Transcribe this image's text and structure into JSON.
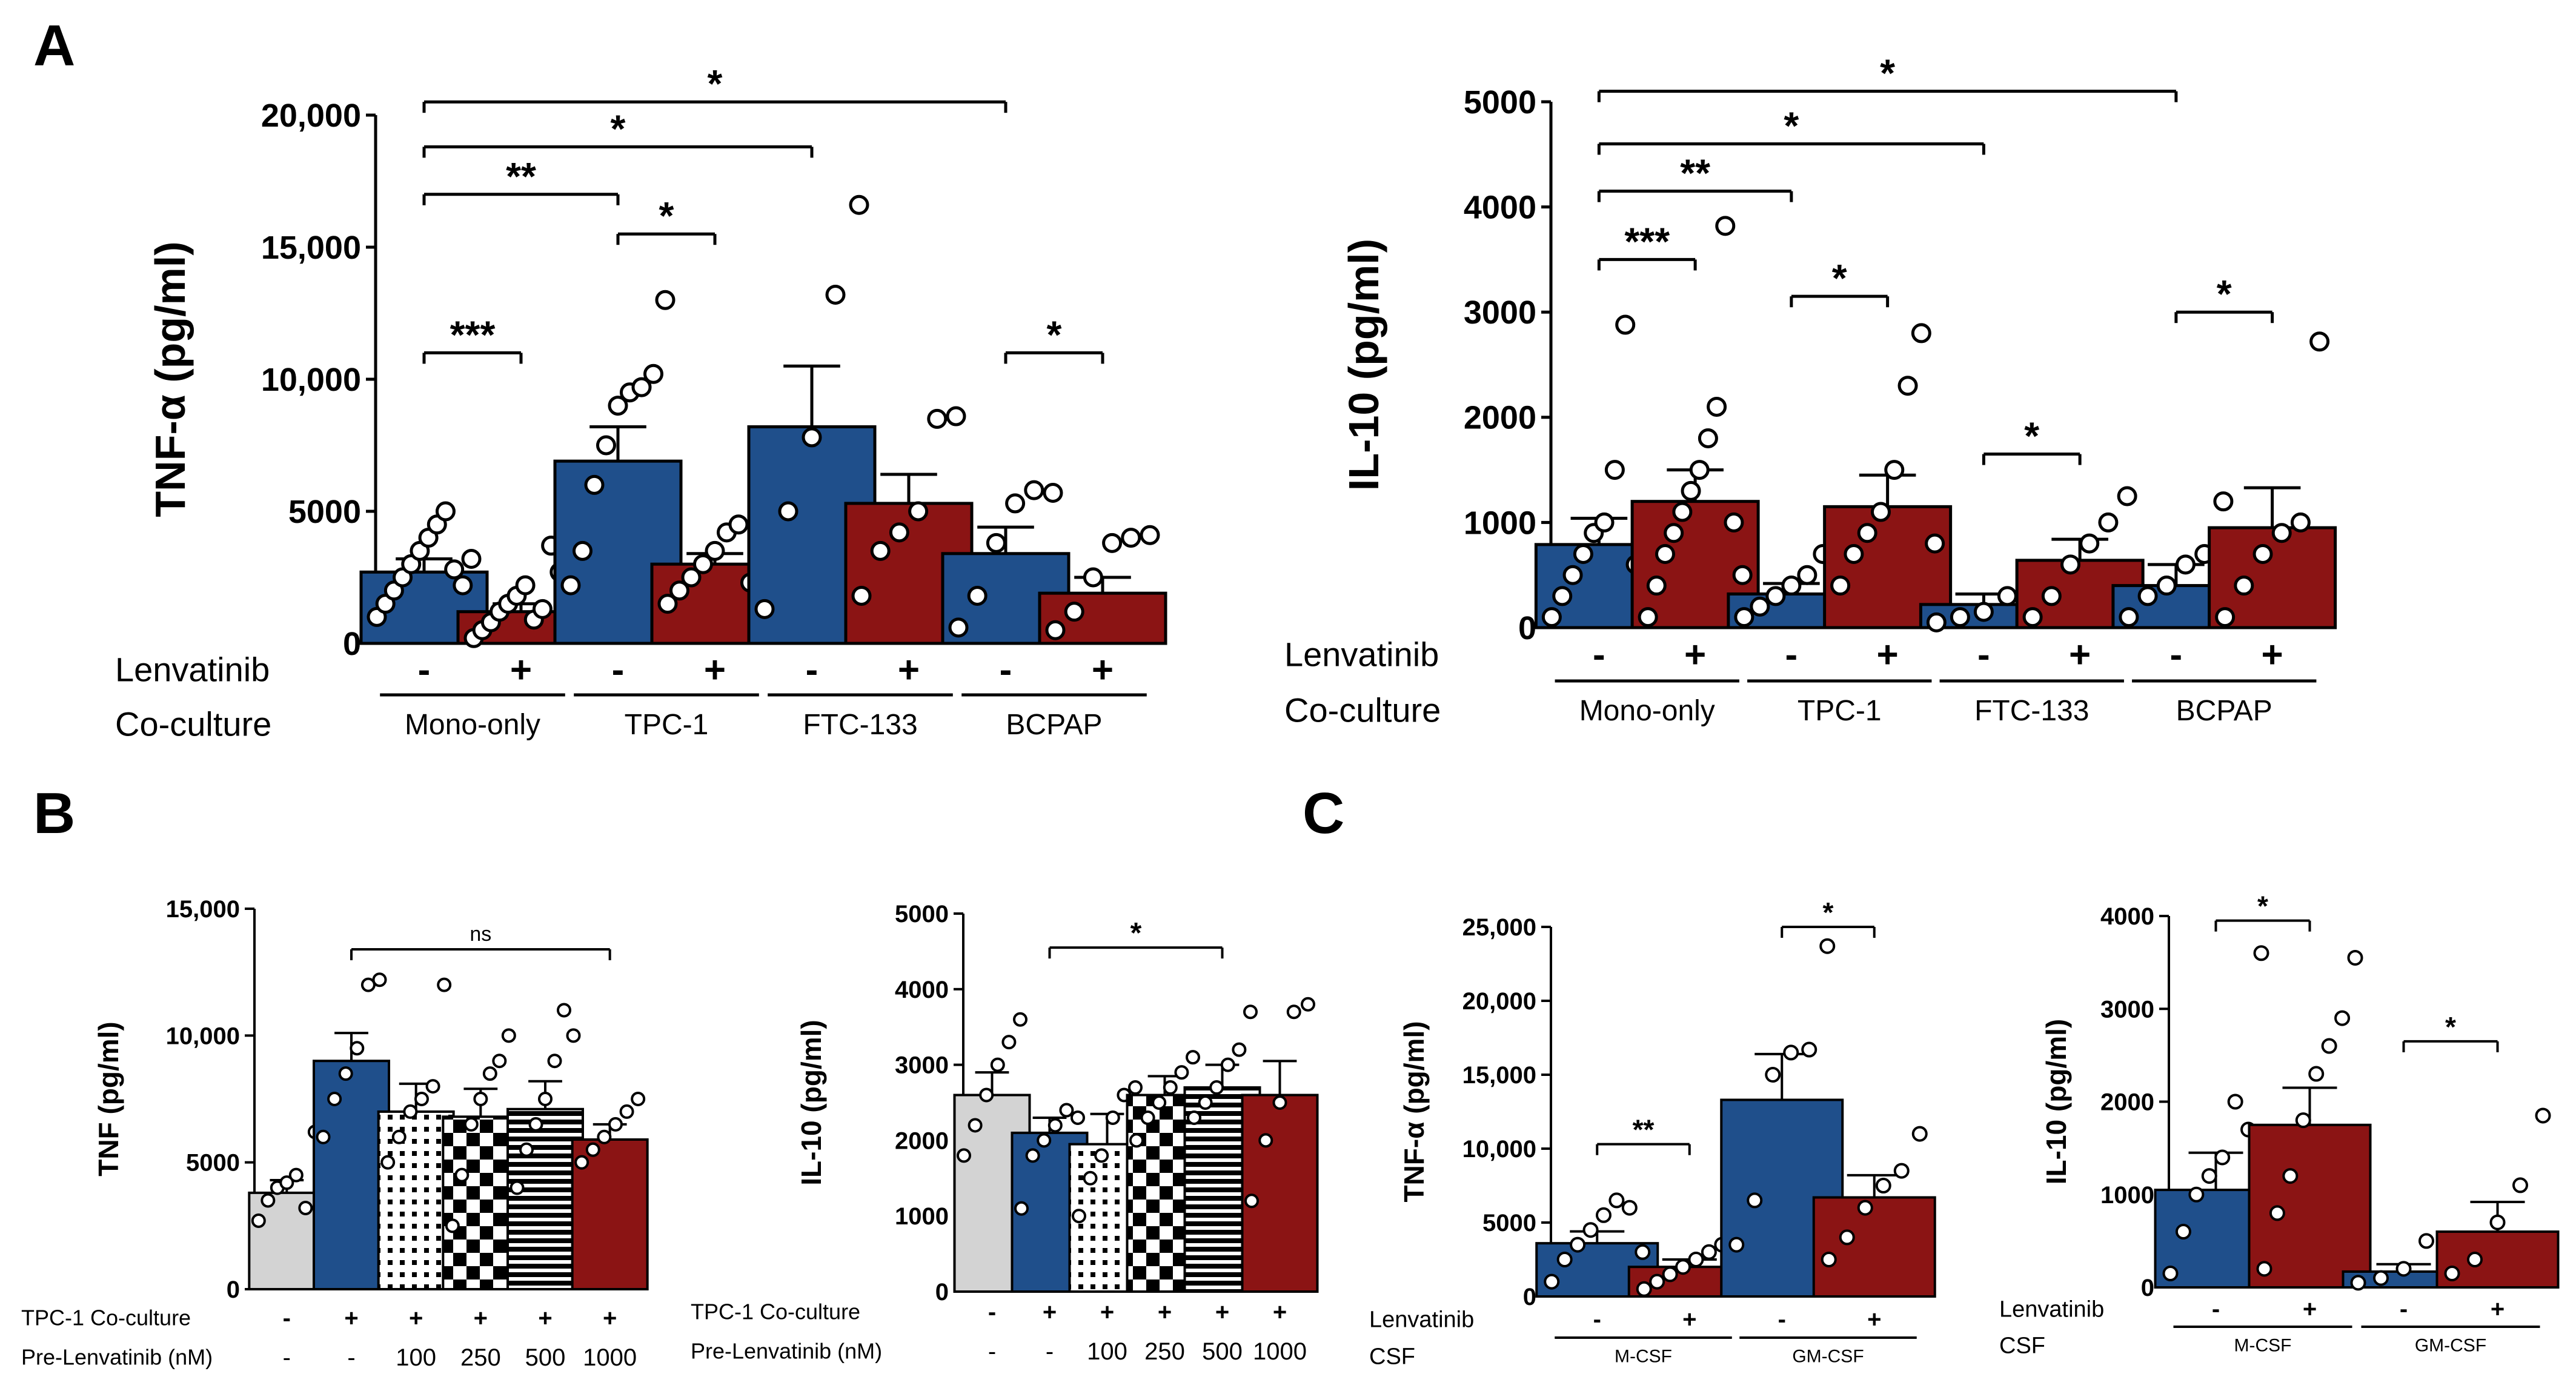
{
  "colors": {
    "blue": "#1f4f8b",
    "red": "#8b1414",
    "gray": "#d3d3d3"
  },
  "panel_labels": [
    "A",
    "B",
    "C"
  ],
  "chart_data": [
    {
      "id": "A1",
      "type": "bar",
      "panel": "A",
      "ylabel": "TNF-α (pg/ml)",
      "ylim": [
        0,
        20000
      ],
      "yticks": [
        0,
        5000,
        10000,
        15000,
        20000
      ],
      "ytick_labels": [
        "0",
        "5000",
        "10,000",
        "15,000",
        "20,000"
      ],
      "xrow1_title": "Lenvatinib",
      "xrow2_title": "Co-culture",
      "signs": [
        "-",
        "+",
        "-",
        "+",
        "-",
        "+",
        "-",
        "+"
      ],
      "groups": [
        "Mono-only",
        "TPC-1",
        "FTC-133",
        "BCPAP"
      ],
      "bar_colors": [
        "blue",
        "red",
        "blue",
        "red",
        "blue",
        "red",
        "blue",
        "red"
      ],
      "bar_patterns": [
        "solid",
        "solid",
        "solid",
        "solid",
        "solid",
        "solid",
        "solid",
        "solid"
      ],
      "values": [
        2700,
        1200,
        6900,
        3000,
        8200,
        5300,
        3400,
        1900
      ],
      "errors": [
        500,
        300,
        1300,
        400,
        2300,
        1100,
        1000,
        600
      ],
      "points": [
        [
          1000,
          1500,
          2000,
          2500,
          3000,
          3500,
          4000,
          4500,
          5000,
          2800,
          2200,
          3200
        ],
        [
          200,
          500,
          800,
          1200,
          1500,
          1800,
          2200,
          900,
          1300,
          3700,
          2700,
          600
        ],
        [
          2200,
          3500,
          6000,
          7500,
          9000,
          9500,
          9700,
          10200,
          13000
        ],
        [
          1500,
          2000,
          2500,
          3000,
          3500,
          4200,
          4500,
          2300,
          2800
        ],
        [
          1300,
          5000,
          7800,
          13200,
          16600
        ],
        [
          1800,
          3500,
          4200,
          5000,
          8500,
          8600
        ],
        [
          600,
          1800,
          3800,
          5300,
          5800,
          5700
        ],
        [
          500,
          1200,
          2500,
          3800,
          4000,
          4100
        ]
      ],
      "sig": [
        {
          "from": 0,
          "to": 1,
          "label": "***",
          "y": 11000
        },
        {
          "from": 2,
          "to": 3,
          "label": "*",
          "y": 15500
        },
        {
          "from": 0,
          "to": 2,
          "label": "**",
          "y": 17000
        },
        {
          "from": 0,
          "to": 4,
          "label": "*",
          "y": 18800
        },
        {
          "from": 0,
          "to": 6,
          "label": "*",
          "y": 20500
        },
        {
          "from": 6,
          "to": 7,
          "label": "*",
          "y": 11000
        }
      ]
    },
    {
      "id": "A2",
      "type": "bar",
      "panel": "A",
      "ylabel": "IL-10 (pg/ml)",
      "ylim": [
        0,
        5000
      ],
      "yticks": [
        0,
        1000,
        2000,
        3000,
        4000,
        5000
      ],
      "ytick_labels": [
        "0",
        "1000",
        "2000",
        "3000",
        "4000",
        "5000"
      ],
      "xrow1_title": "Lenvatinib",
      "xrow2_title": "Co-culture",
      "signs": [
        "-",
        "+",
        "-",
        "+",
        "-",
        "+",
        "-",
        "+"
      ],
      "groups": [
        "Mono-only",
        "TPC-1",
        "FTC-133",
        "BCPAP"
      ],
      "bar_colors": [
        "blue",
        "red",
        "blue",
        "red",
        "blue",
        "red",
        "blue",
        "red"
      ],
      "bar_patterns": [
        "solid",
        "solid",
        "solid",
        "solid",
        "solid",
        "solid",
        "solid",
        "solid"
      ],
      "values": [
        790,
        1200,
        320,
        1150,
        220,
        640,
        400,
        950
      ],
      "errors": [
        250,
        300,
        100,
        300,
        100,
        200,
        200,
        380
      ],
      "points": [
        [
          100,
          300,
          500,
          700,
          900,
          1000,
          1500,
          2880,
          600,
          800
        ],
        [
          100,
          400,
          700,
          900,
          1100,
          1300,
          1500,
          1800,
          2100,
          3820,
          1000,
          500
        ],
        [
          100,
          200,
          300,
          400,
          500,
          700,
          350
        ],
        [
          400,
          700,
          900,
          1100,
          1500,
          2300,
          2800,
          800
        ],
        [
          50,
          100,
          150,
          300,
          400
        ],
        [
          100,
          300,
          600,
          800,
          1000,
          1250
        ],
        [
          100,
          300,
          400,
          600,
          700,
          1200
        ],
        [
          100,
          400,
          700,
          900,
          1000,
          2720
        ]
      ],
      "sig": [
        {
          "from": 0,
          "to": 1,
          "label": "***",
          "y": 3500
        },
        {
          "from": 2,
          "to": 3,
          "label": "*",
          "y": 3150
        },
        {
          "from": 0,
          "to": 2,
          "label": "**",
          "y": 4150
        },
        {
          "from": 0,
          "to": 4,
          "label": "*",
          "y": 4600
        },
        {
          "from": 0,
          "to": 6,
          "label": "*",
          "y": 5100
        },
        {
          "from": 4,
          "to": 5,
          "label": "*",
          "y": 1650
        },
        {
          "from": 6,
          "to": 7,
          "label": "*",
          "y": 3000
        }
      ]
    },
    {
      "id": "B1",
      "type": "bar",
      "panel": "B",
      "ylabel": "TNF (pg/ml)",
      "ylim": [
        0,
        15000
      ],
      "yticks": [
        0,
        5000,
        10000,
        15000
      ],
      "ytick_labels": [
        "0",
        "5000",
        "10,000",
        "15,000"
      ],
      "xrow1_title": "TPC-1 Co-culture",
      "xrow2_title": "Pre-Lenvatinib (nM)",
      "signs": [
        "-",
        "+",
        "+",
        "+",
        "+",
        "+"
      ],
      "row2": [
        "-",
        "-",
        "100",
        "250",
        "500",
        "1000"
      ],
      "bar_colors": [
        "gray",
        "blue",
        "white",
        "white",
        "white",
        "red"
      ],
      "bar_patterns": [
        "solid",
        "solid",
        "grid",
        "checker",
        "hstripe",
        "solid"
      ],
      "values": [
        3800,
        9000,
        7000,
        6800,
        7100,
        5900
      ],
      "errors": [
        500,
        1100,
        1100,
        1100,
        1100,
        600
      ],
      "points": [
        [
          2700,
          3500,
          4000,
          4200,
          4500,
          3200,
          6200
        ],
        [
          6000,
          7500,
          8500,
          9500,
          12000,
          12200
        ],
        [
          5000,
          6000,
          7000,
          7500,
          8000,
          12000
        ],
        [
          2500,
          4500,
          6500,
          7500,
          8500,
          9000,
          10000
        ],
        [
          4000,
          5500,
          6500,
          7500,
          9000,
          11000,
          10000
        ],
        [
          5000,
          5500,
          6000,
          6500,
          7000,
          7500
        ]
      ],
      "sig": [
        {
          "from": 1,
          "to": 5,
          "label": "ns",
          "y": 13400
        }
      ]
    },
    {
      "id": "B2",
      "type": "bar",
      "panel": "B",
      "ylabel": "IL-10 (pg/ml)",
      "ylim": [
        0,
        5000
      ],
      "yticks": [
        0,
        1000,
        2000,
        3000,
        4000,
        5000
      ],
      "ytick_labels": [
        "0",
        "1000",
        "2000",
        "3000",
        "4000",
        "5000"
      ],
      "xrow1_title": "TPC-1 Co-culture",
      "xrow2_title": "Pre-Lenvatinib (nM)",
      "signs": [
        "-",
        "+",
        "+",
        "+",
        "+",
        "+"
      ],
      "row2": [
        "-",
        "-",
        "100",
        "250",
        "500",
        "1000"
      ],
      "bar_colors": [
        "gray",
        "blue",
        "white",
        "white",
        "white",
        "red"
      ],
      "bar_patterns": [
        "solid",
        "solid",
        "grid",
        "checker",
        "hstripe",
        "solid"
      ],
      "values": [
        2600,
        2100,
        1950,
        2600,
        2700,
        2600
      ],
      "errors": [
        300,
        200,
        400,
        250,
        300,
        450
      ],
      "points": [
        [
          1800,
          2200,
          2600,
          3000,
          3300,
          3600
        ],
        [
          1100,
          1800,
          2000,
          2200,
          2400,
          2300
        ],
        [
          1000,
          1500,
          1800,
          2300,
          2600,
          2700
        ],
        [
          2000,
          2300,
          2500,
          2700,
          2900,
          3100
        ],
        [
          2300,
          2500,
          2700,
          3000,
          3200,
          3700
        ],
        [
          1200,
          2000,
          2500,
          3700,
          3800
        ]
      ],
      "sig": [
        {
          "from": 1,
          "to": 4,
          "label": "*",
          "y": 4550
        }
      ]
    },
    {
      "id": "C1",
      "type": "bar",
      "panel": "C",
      "ylabel": "TNF-α (pg/ml)",
      "ylim": [
        0,
        25000
      ],
      "yticks": [
        0,
        5000,
        10000,
        15000,
        20000,
        25000
      ],
      "ytick_labels": [
        "0",
        "5000",
        "10,000",
        "15,000",
        "20,000",
        "25,000"
      ],
      "xrow1_title": "Lenvatinib",
      "xrow2_title": "CSF",
      "signs": [
        "-",
        "+",
        "-",
        "+"
      ],
      "groups": [
        "M-CSF",
        "GM-CSF"
      ],
      "bar_colors": [
        "blue",
        "red",
        "blue",
        "red"
      ],
      "bar_patterns": [
        "solid",
        "solid",
        "solid",
        "solid"
      ],
      "values": [
        3600,
        2000,
        13300,
        6700
      ],
      "errors": [
        800,
        500,
        3100,
        1500
      ],
      "points": [
        [
          1000,
          2500,
          3500,
          4500,
          5500,
          6500,
          6000,
          3000
        ],
        [
          500,
          1000,
          1500,
          2000,
          2500,
          3000,
          3500,
          4000
        ],
        [
          3500,
          6500,
          15000,
          16500,
          16700,
          23700
        ],
        [
          2500,
          4000,
          6000,
          7500,
          8500,
          11000
        ]
      ],
      "sig": [
        {
          "from": 0,
          "to": 1,
          "label": "**",
          "y": 10300
        },
        {
          "from": 2,
          "to": 3,
          "label": "*",
          "y": 25000
        }
      ]
    },
    {
      "id": "C2",
      "type": "bar",
      "panel": "C",
      "ylabel": "IL-10 (pg/ml)",
      "ylim": [
        0,
        4000
      ],
      "yticks": [
        0,
        1000,
        2000,
        3000,
        4000
      ],
      "ytick_labels": [
        "0",
        "1000",
        "2000",
        "3000",
        "4000"
      ],
      "xrow1_title": "Lenvatinib",
      "xrow2_title": "CSF",
      "signs": [
        "-",
        "+",
        "-",
        "+"
      ],
      "groups": [
        "M-CSF",
        "GM-CSF"
      ],
      "bar_colors": [
        "blue",
        "red",
        "blue",
        "red"
      ],
      "bar_patterns": [
        "solid",
        "solid",
        "solid",
        "solid"
      ],
      "values": [
        1050,
        1750,
        170,
        600
      ],
      "errors": [
        400,
        400,
        80,
        320
      ],
      "points": [
        [
          150,
          600,
          1000,
          1200,
          1400,
          2000,
          1700,
          3600
        ],
        [
          200,
          800,
          1200,
          1800,
          2300,
          2600,
          2900,
          3550
        ],
        [
          50,
          100,
          200,
          500,
          300
        ],
        [
          150,
          300,
          700,
          1100,
          1850
        ]
      ],
      "sig": [
        {
          "from": 0,
          "to": 1,
          "label": "*",
          "y": 3950
        },
        {
          "from": 2,
          "to": 3,
          "label": "*",
          "y": 2650
        }
      ]
    }
  ]
}
